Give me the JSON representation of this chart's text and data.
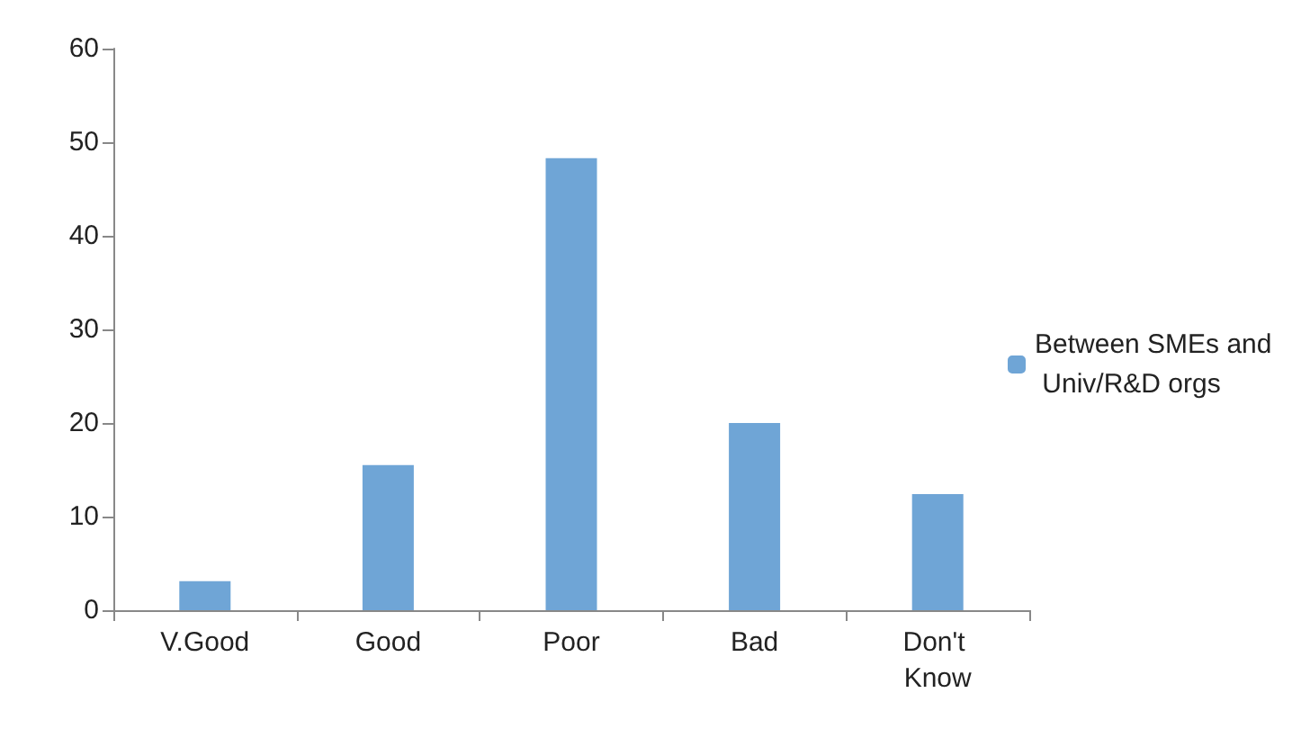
{
  "chart_data": {
    "type": "bar",
    "categories": [
      "V.Good",
      "Good",
      "Poor",
      "Bad",
      "Don't Know"
    ],
    "series": [
      {
        "name": "Between SMEs and Univ/R&D orgs",
        "color": "#6fa5d6",
        "values": [
          3.1,
          15.5,
          48.3,
          20,
          12.4
        ]
      }
    ],
    "ylim": [
      0,
      60
    ],
    "yticks": [
      0,
      10,
      20,
      30,
      40,
      50,
      60
    ],
    "grid": false,
    "legend": "right"
  }
}
